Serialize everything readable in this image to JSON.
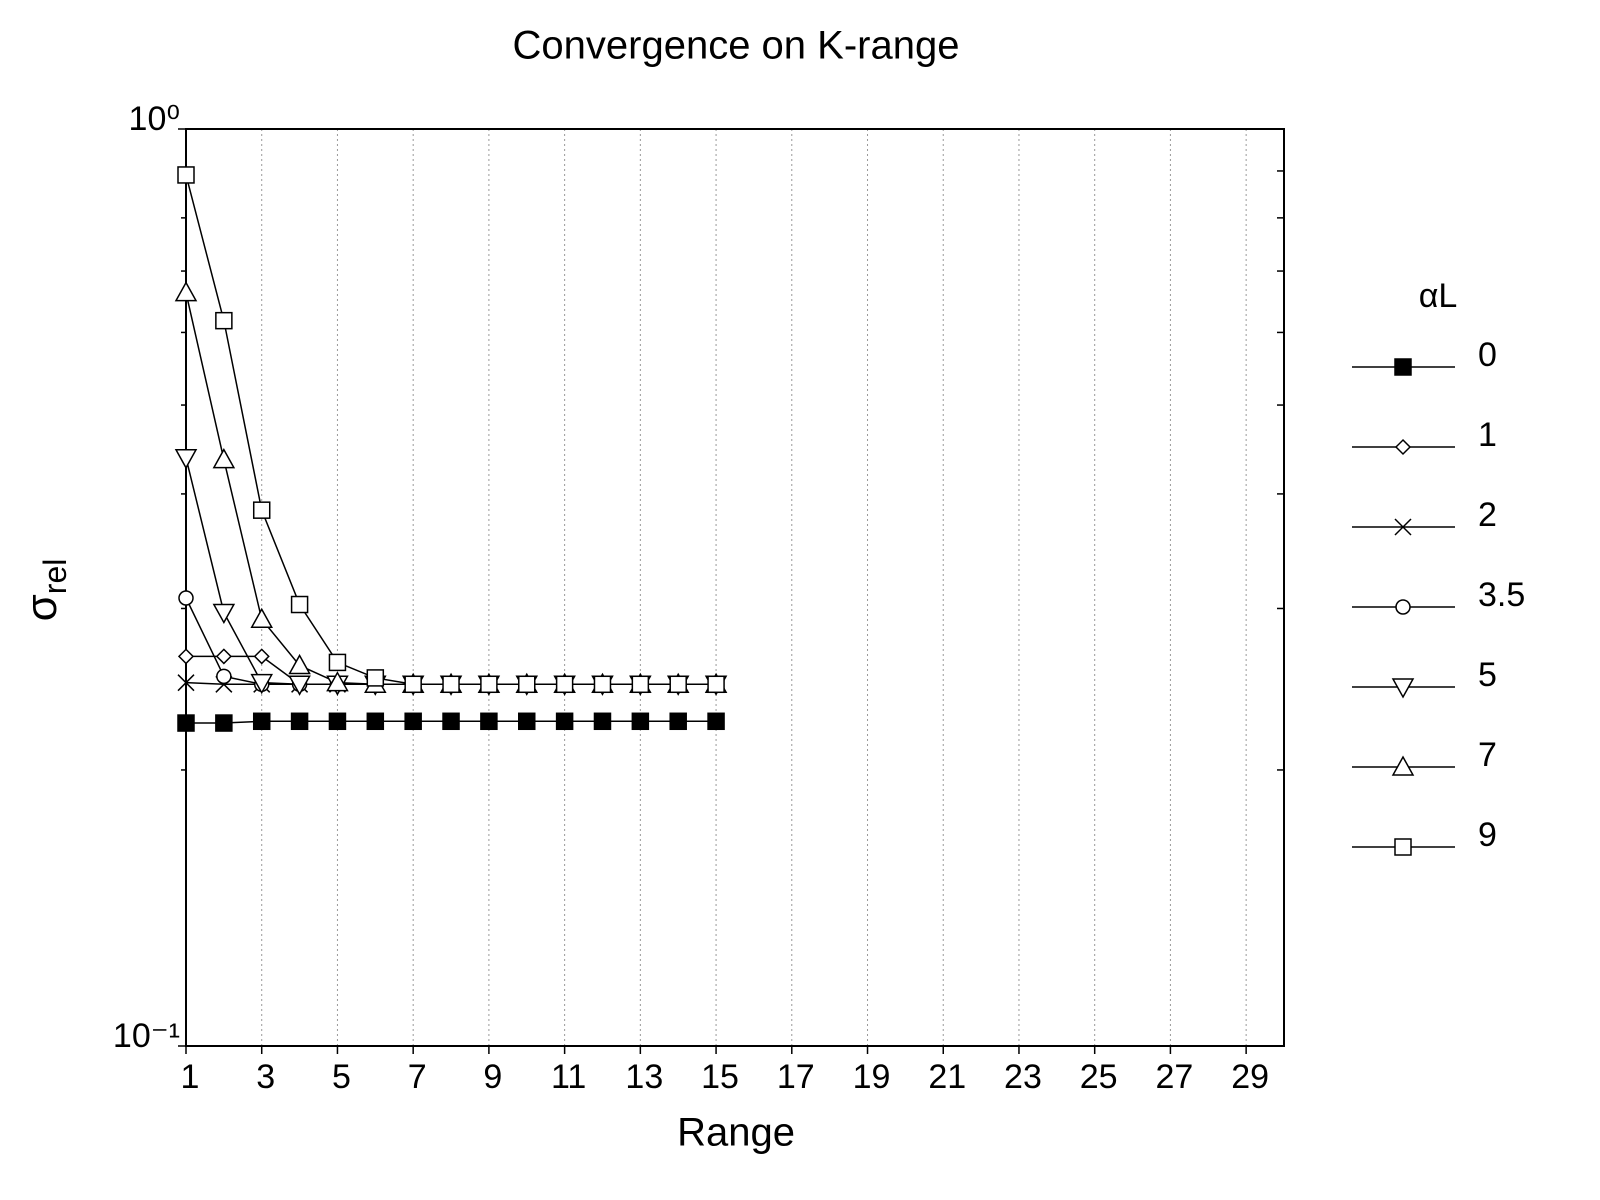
{
  "chart_data": {
    "type": "line",
    "title": "Convergence on K-range",
    "x_label": "Range",
    "y_label": "σ",
    "y_label_sub": "rel",
    "legend_title": "αL",
    "x": [
      1,
      2,
      3,
      4,
      5,
      6,
      7,
      8,
      9,
      10,
      11,
      12,
      13,
      14,
      15
    ],
    "xlim": [
      1,
      30
    ],
    "xticks": [
      1,
      3,
      5,
      7,
      9,
      11,
      13,
      15,
      17,
      19,
      21,
      23,
      25,
      27,
      29
    ],
    "ylim": [
      0.1,
      1
    ],
    "log_y": true,
    "yticks": [
      {
        "value": 0.1,
        "label": "10⁻¹"
      },
      {
        "value": 1,
        "label": "10⁰"
      }
    ],
    "yminor_ticks": [
      0.2,
      0.3,
      0.4,
      0.5,
      0.6,
      0.7,
      0.8,
      0.9
    ],
    "grid": true,
    "legend": "right",
    "series": [
      {
        "name": "0",
        "color": "#000000",
        "marker": "square-filled",
        "values": [
          0.225,
          0.225,
          0.226,
          0.226,
          0.226,
          0.226,
          0.226,
          0.226,
          0.226,
          0.226,
          0.226,
          0.226,
          0.226,
          0.226,
          0.226
        ]
      },
      {
        "name": "1",
        "color": "#000000",
        "marker": "diamond",
        "values": [
          0.266,
          0.266,
          0.266,
          0.248,
          0.248,
          0.248,
          0.248,
          0.248,
          0.248,
          0.248,
          0.248,
          0.248,
          0.248,
          0.248,
          0.248
        ]
      },
      {
        "name": "2",
        "color": "#000000",
        "marker": "x",
        "values": [
          0.249,
          0.248,
          0.248,
          0.248,
          0.248,
          0.248,
          0.248,
          0.248,
          0.248,
          0.248,
          0.248,
          0.248,
          0.248,
          0.248,
          0.248
        ]
      },
      {
        "name": "3.5",
        "color": "#000000",
        "marker": "circle",
        "values": [
          0.308,
          0.253,
          0.248,
          0.248,
          0.248,
          0.248,
          0.248,
          0.248,
          0.248,
          0.248,
          0.248,
          0.248,
          0.248,
          0.248,
          0.248
        ]
      },
      {
        "name": "5",
        "color": "#000000",
        "marker": "triangle-down",
        "values": [
          0.438,
          0.297,
          0.249,
          0.248,
          0.248,
          0.248,
          0.248,
          0.248,
          0.248,
          0.248,
          0.248,
          0.248,
          0.248,
          0.248,
          0.248
        ]
      },
      {
        "name": "7",
        "color": "#000000",
        "marker": "triangle-up",
        "values": [
          0.663,
          0.436,
          0.292,
          0.26,
          0.249,
          0.248,
          0.248,
          0.248,
          0.248,
          0.248,
          0.248,
          0.248,
          0.248,
          0.248,
          0.248
        ]
      },
      {
        "name": "9",
        "color": "#000000",
        "marker": "square",
        "values": [
          0.891,
          0.618,
          0.384,
          0.303,
          0.262,
          0.252,
          0.248,
          0.248,
          0.248,
          0.248,
          0.248,
          0.248,
          0.248,
          0.248,
          0.248
        ]
      }
    ]
  }
}
